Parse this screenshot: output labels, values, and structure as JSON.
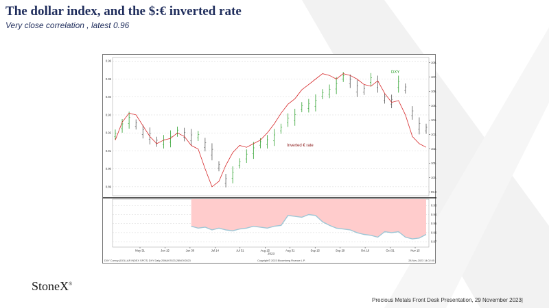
{
  "slide": {
    "title": "The dollar index, and the $:€ inverted rate",
    "subtitle": "Very close correlation , latest 0.96"
  },
  "footer": {
    "logo_text": "StoneX",
    "logo_mark": "®",
    "presentation": "Precious Metals Front Desk Presentation, 29 November 2023|"
  },
  "colors": {
    "title": "#1f2d5c",
    "dxy_up": "#2ca02c",
    "dxy_down": "#555555",
    "eur_line": "#d62728",
    "corr_fill": "#ffcccc",
    "corr_line": "#9ec7d6",
    "watermark": "#f2f2f2"
  },
  "chart_data": [
    {
      "type": "line",
      "panel": "price",
      "series_labels": {
        "dxy": "DXY",
        "eur_inv": "Inverted € rate"
      },
      "left_axis": {
        "ticks": [
          "0.96",
          "0.95",
          "0.94",
          "0.93",
          "0.92",
          "0.91",
          "0.90",
          "0.89"
        ],
        "range": [
          0.885,
          0.962
        ]
      },
      "right_axis": {
        "ticks": [
          "108.00",
          "107.00",
          "106.00",
          "105.00",
          "104.00",
          "103.00",
          "102.00",
          "101.00",
          "100.00",
          "99.00"
        ],
        "range": [
          98.75,
          108.35
        ]
      },
      "x_ticks": [
        "May 31",
        "Jun 15",
        "Jun 30",
        "Jul 14",
        "Jul 31",
        "Aug 15",
        "Aug 31",
        "Sep 15",
        "Sep 29",
        "Oct 16",
        "Oct 31",
        "Nov 15"
      ],
      "x_year": "2023",
      "dxy_series": [
        103.0,
        103.6,
        104.0,
        103.7,
        103.2,
        102.9,
        102.5,
        102.5,
        102.7,
        103.2,
        103.0,
        102.8,
        102.9,
        102.3,
        101.8,
        100.8,
        99.8,
        100.2,
        101.0,
        101.5,
        101.9,
        102.4,
        102.5,
        102.8,
        103.4,
        104.0,
        104.2,
        104.9,
        105.0,
        105.2,
        105.8,
        106.0,
        106.4,
        107.0,
        106.7,
        106.2,
        106.1,
        106.8,
        106.5,
        105.5,
        105.3,
        106.5,
        106.2,
        104.5,
        103.6,
        103.4
      ],
      "eur_inv_series": [
        0.916,
        0.926,
        0.931,
        0.93,
        0.924,
        0.918,
        0.914,
        0.916,
        0.917,
        0.92,
        0.918,
        0.913,
        0.911,
        0.9,
        0.89,
        0.893,
        0.902,
        0.909,
        0.913,
        0.912,
        0.914,
        0.916,
        0.92,
        0.925,
        0.931,
        0.936,
        0.939,
        0.944,
        0.947,
        0.95,
        0.953,
        0.952,
        0.95,
        0.953,
        0.952,
        0.95,
        0.947,
        0.946,
        0.949,
        0.942,
        0.937,
        0.938,
        0.93,
        0.918,
        0.914,
        0.912
      ]
    },
    {
      "type": "area",
      "panel": "correlation",
      "right_axis": {
        "ticks": [
          "0.93",
          "0.94",
          "0.95",
          "0.96",
          "0.97"
        ],
        "range": [
          0.923,
          0.976
        ],
        "inverted": true
      },
      "start_index": 11,
      "values": [
        0.953,
        0.955,
        0.954,
        0.957,
        0.955,
        0.957,
        0.958,
        0.956,
        0.955,
        0.953,
        0.954,
        0.955,
        0.953,
        0.952,
        0.941,
        0.942,
        0.943,
        0.94,
        0.941,
        0.948,
        0.952,
        0.955,
        0.956,
        0.957,
        0.96,
        0.962,
        0.963,
        0.965,
        0.959,
        0.96,
        0.959,
        0.965,
        0.967,
        0.966,
        0.962
      ]
    }
  ],
  "source_left": "DXY Curncy (DOLLAR INDEX SPOT) DXY Daily 20MAY2023-28NOV2023",
  "source_center": "Copyright© 2023 Bloomberg Finance L.P.",
  "source_right": "28-Nov-2023 14:02:05"
}
